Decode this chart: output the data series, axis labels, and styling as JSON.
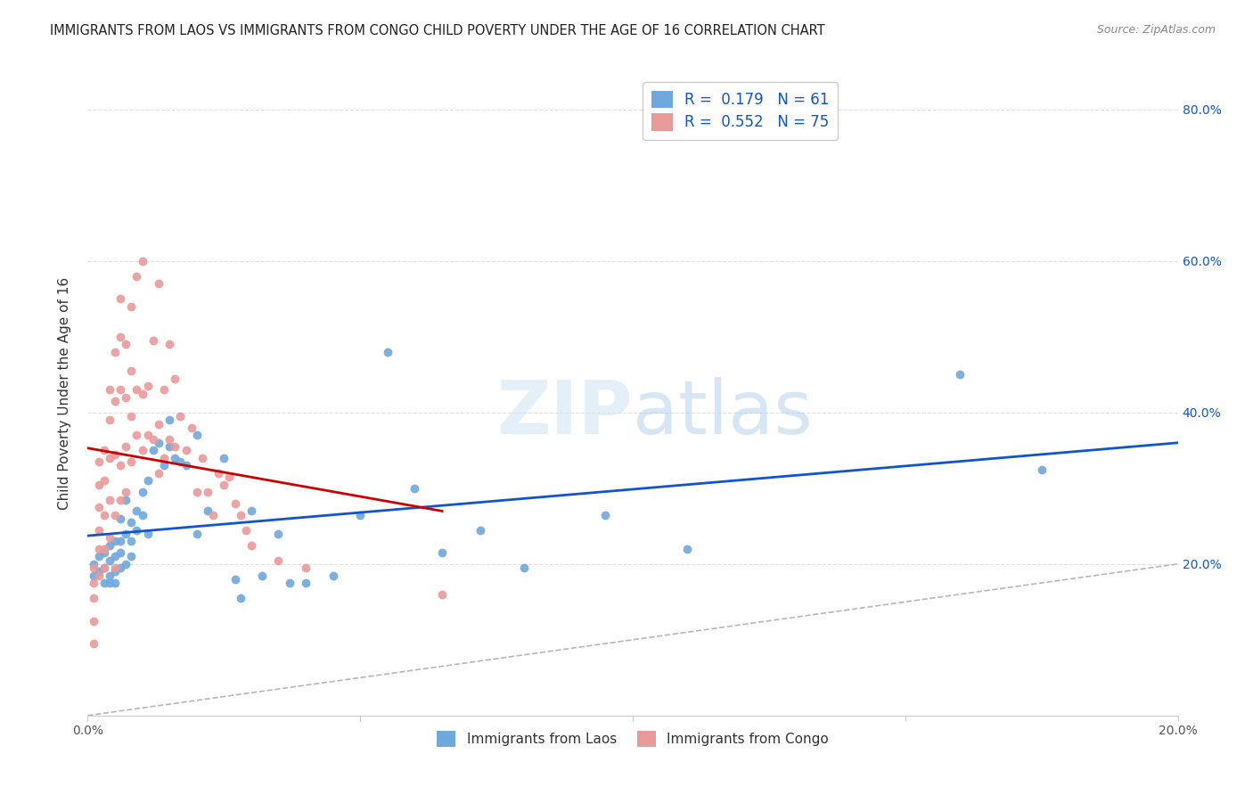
{
  "title": "IMMIGRANTS FROM LAOS VS IMMIGRANTS FROM CONGO CHILD POVERTY UNDER THE AGE OF 16 CORRELATION CHART",
  "source": "Source: ZipAtlas.com",
  "ylabel": "Child Poverty Under the Age of 16",
  "xlim": [
    0.0,
    0.2
  ],
  "ylim": [
    0.0,
    0.85
  ],
  "xticks": [
    0.0,
    0.05,
    0.1,
    0.15,
    0.2
  ],
  "yticks": [
    0.0,
    0.2,
    0.4,
    0.6,
    0.8
  ],
  "right_ytick_labels": [
    "",
    "20.0%",
    "40.0%",
    "60.0%",
    "80.0%"
  ],
  "xtick_labels": [
    "0.0%",
    "",
    "",
    "",
    "20.0%"
  ],
  "laos_R": 0.179,
  "laos_N": 61,
  "congo_R": 0.552,
  "congo_N": 75,
  "laos_color": "#6fa8dc",
  "congo_color": "#ea9999",
  "laos_line_color": "#1155cc",
  "congo_line_color": "#cc0000",
  "diagonal_color": "#b7b7b7",
  "watermark_zip": "ZIP",
  "watermark_atlas": "atlas",
  "background_color": "#ffffff",
  "laos_x": [
    0.001,
    0.001,
    0.002,
    0.002,
    0.003,
    0.003,
    0.003,
    0.004,
    0.004,
    0.004,
    0.004,
    0.005,
    0.005,
    0.005,
    0.005,
    0.006,
    0.006,
    0.006,
    0.006,
    0.007,
    0.007,
    0.007,
    0.008,
    0.008,
    0.008,
    0.009,
    0.009,
    0.01,
    0.01,
    0.011,
    0.011,
    0.012,
    0.013,
    0.014,
    0.015,
    0.015,
    0.016,
    0.017,
    0.018,
    0.02,
    0.02,
    0.022,
    0.025,
    0.027,
    0.028,
    0.03,
    0.032,
    0.035,
    0.037,
    0.04,
    0.045,
    0.05,
    0.055,
    0.06,
    0.065,
    0.072,
    0.08,
    0.095,
    0.11,
    0.16,
    0.175
  ],
  "laos_y": [
    0.185,
    0.2,
    0.19,
    0.21,
    0.195,
    0.175,
    0.215,
    0.185,
    0.205,
    0.225,
    0.175,
    0.19,
    0.21,
    0.23,
    0.175,
    0.215,
    0.23,
    0.195,
    0.26,
    0.24,
    0.2,
    0.285,
    0.255,
    0.23,
    0.21,
    0.27,
    0.245,
    0.295,
    0.265,
    0.31,
    0.24,
    0.35,
    0.36,
    0.33,
    0.39,
    0.355,
    0.34,
    0.335,
    0.33,
    0.37,
    0.24,
    0.27,
    0.34,
    0.18,
    0.155,
    0.27,
    0.185,
    0.24,
    0.175,
    0.175,
    0.185,
    0.265,
    0.48,
    0.3,
    0.215,
    0.245,
    0.195,
    0.265,
    0.22,
    0.45,
    0.325
  ],
  "congo_x": [
    0.001,
    0.001,
    0.001,
    0.001,
    0.001,
    0.002,
    0.002,
    0.002,
    0.002,
    0.002,
    0.002,
    0.003,
    0.003,
    0.003,
    0.003,
    0.003,
    0.004,
    0.004,
    0.004,
    0.004,
    0.004,
    0.005,
    0.005,
    0.005,
    0.005,
    0.005,
    0.006,
    0.006,
    0.006,
    0.006,
    0.006,
    0.007,
    0.007,
    0.007,
    0.007,
    0.008,
    0.008,
    0.008,
    0.008,
    0.009,
    0.009,
    0.009,
    0.01,
    0.01,
    0.01,
    0.011,
    0.011,
    0.012,
    0.012,
    0.013,
    0.013,
    0.013,
    0.014,
    0.014,
    0.015,
    0.015,
    0.016,
    0.016,
    0.017,
    0.018,
    0.019,
    0.02,
    0.021,
    0.022,
    0.023,
    0.024,
    0.025,
    0.026,
    0.027,
    0.028,
    0.029,
    0.03,
    0.035,
    0.04,
    0.065
  ],
  "congo_y": [
    0.195,
    0.175,
    0.155,
    0.125,
    0.095,
    0.185,
    0.22,
    0.245,
    0.275,
    0.305,
    0.335,
    0.195,
    0.22,
    0.265,
    0.31,
    0.35,
    0.235,
    0.285,
    0.34,
    0.39,
    0.43,
    0.195,
    0.265,
    0.345,
    0.415,
    0.48,
    0.285,
    0.33,
    0.43,
    0.5,
    0.55,
    0.295,
    0.355,
    0.42,
    0.49,
    0.335,
    0.395,
    0.455,
    0.54,
    0.37,
    0.43,
    0.58,
    0.35,
    0.425,
    0.6,
    0.37,
    0.435,
    0.365,
    0.495,
    0.32,
    0.385,
    0.57,
    0.34,
    0.43,
    0.365,
    0.49,
    0.355,
    0.445,
    0.395,
    0.35,
    0.38,
    0.295,
    0.34,
    0.295,
    0.265,
    0.32,
    0.305,
    0.315,
    0.28,
    0.265,
    0.245,
    0.225,
    0.205,
    0.195,
    0.16
  ]
}
